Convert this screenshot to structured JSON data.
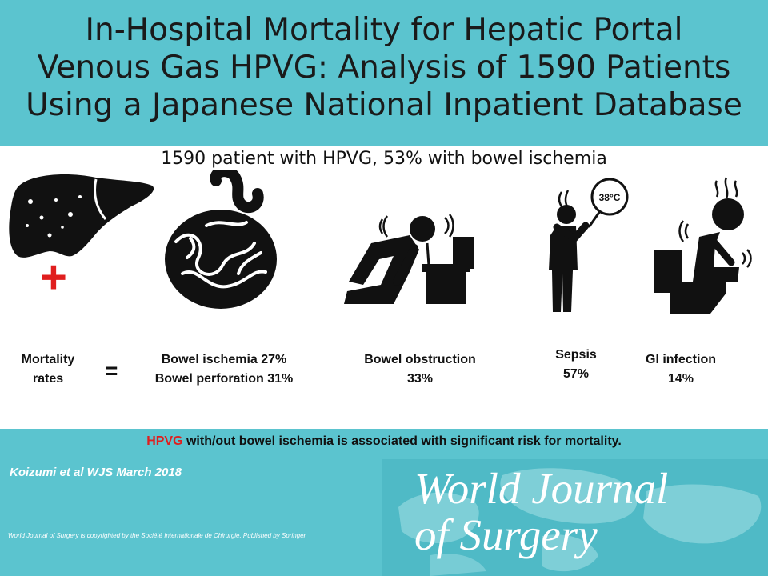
{
  "header": {
    "title_lines": [
      "In-Hospital Mortality for Hepatic Portal",
      "Venous Gas HPVG: Analysis of 1590 Patients",
      "Using a Japanese National Inpatient Database"
    ]
  },
  "subtitle": "1590 patient with HPVG, 53% with bowel ischemia",
  "icons": {
    "liver": "liver-icon",
    "plus": "+",
    "bowel": "intestine-icon",
    "obstruction": "vomiting-person-icon",
    "sepsis": "fever-person-icon",
    "sepsis_badge": "38°C",
    "gi_infection": "toilet-person-icon"
  },
  "rates": {
    "mortality_label": [
      "Mortality",
      "rates"
    ],
    "equals": "=",
    "ischemia": "Bowel ischemia 27%",
    "perforation": "Bowel perforation 31%",
    "obstruction": [
      "Bowel obstruction",
      "33%"
    ],
    "sepsis": [
      "Sepsis",
      "57%"
    ],
    "gi_infection": [
      "GI infection",
      "14%"
    ]
  },
  "conclusion": {
    "highlight": "HPVG",
    "rest": " with/out bowel ischemia is associated with significant risk for mortality."
  },
  "citation": "Koizumi et al WJS March 2018",
  "copyright": "World Journal of Surgery is copyrighted by the Société Internationale de Chirurgie.  Published by Springer",
  "journal": {
    "line1": "World Journal",
    "line2": "of Surgery"
  },
  "colors": {
    "band": "#5bc4cf",
    "accent": "#e01e1e",
    "icon": "#111111"
  }
}
